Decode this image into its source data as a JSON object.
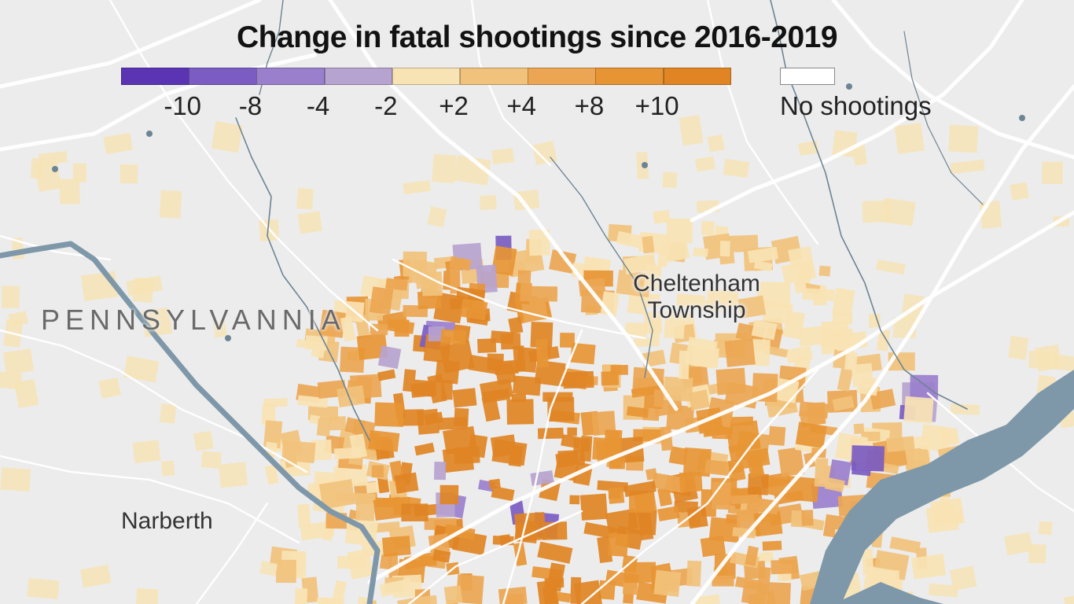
{
  "title": "Change in fatal shootings since 2016-2019",
  "legend": {
    "items": [
      {
        "color": "#5b34b3"
      },
      {
        "color": "#7b5cc2"
      },
      {
        "color": "#9a7fcd"
      },
      {
        "color": "#b7a3cf"
      },
      {
        "color": "#f8e3b4"
      },
      {
        "color": "#f1c27c"
      },
      {
        "color": "#eca653"
      },
      {
        "color": "#e79534"
      },
      {
        "color": "#e08424"
      }
    ],
    "tick_labels": [
      "-10",
      "-8",
      "-4",
      "-2",
      "+2",
      "+4",
      "+8",
      "+10"
    ],
    "no_data_label": "No shootings"
  },
  "places": {
    "state": "PENNSYLVANNIA",
    "cheltenham_line1": "Cheltenham",
    "cheltenham_line2": "Township",
    "narberth": "Narberth"
  },
  "colors": {
    "background": "#ececec",
    "roads": "#ffffff",
    "river": "#7e98a9",
    "creek": "#6c8494"
  }
}
